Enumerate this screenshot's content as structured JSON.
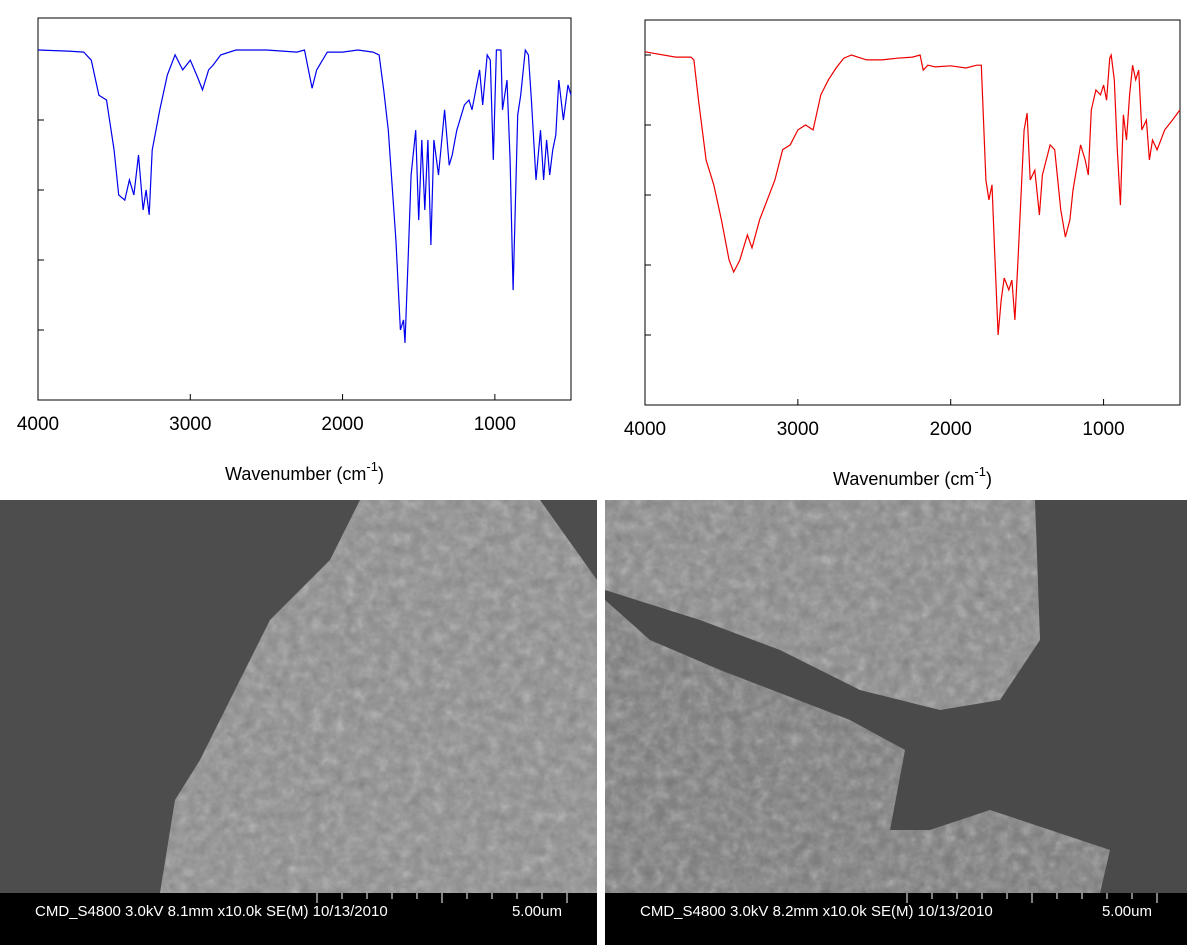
{
  "chart_data": [
    {
      "type": "line",
      "color": "#0000ee",
      "xlabel": "Wavenumber (cm",
      "xlabel_sup": "-1",
      "xlabel_end": ")",
      "xlim": [
        4000,
        500
      ],
      "xticks": [
        4000,
        3000,
        2000,
        1000
      ],
      "ylim": [
        0,
        110
      ],
      "yticks": [
        0,
        20,
        40,
        60,
        80,
        100
      ],
      "x": [
        4000,
        3800,
        3700,
        3650,
        3600,
        3550,
        3500,
        3470,
        3430,
        3400,
        3370,
        3340,
        3310,
        3290,
        3270,
        3250,
        3200,
        3150,
        3100,
        3050,
        3000,
        2950,
        2920,
        2880,
        2850,
        2800,
        2700,
        2500,
        2300,
        2250,
        2200,
        2170,
        2100,
        2000,
        1900,
        1800,
        1760,
        1730,
        1700,
        1650,
        1620,
        1600,
        1590,
        1570,
        1550,
        1520,
        1500,
        1480,
        1460,
        1440,
        1420,
        1400,
        1370,
        1330,
        1300,
        1280,
        1250,
        1200,
        1170,
        1150,
        1100,
        1080,
        1050,
        1030,
        1010,
        990,
        960,
        950,
        920,
        900,
        880,
        870,
        850,
        830,
        800,
        780,
        760,
        730,
        700,
        680,
        660,
        640,
        620,
        600,
        580,
        550,
        520,
        500
      ],
      "values": [
        100,
        99.7,
        99.4,
        97.1,
        87.1,
        85.7,
        71.4,
        58.6,
        57.1,
        62.9,
        58.6,
        70,
        54.3,
        60,
        52.9,
        71.4,
        82.9,
        92.9,
        98.6,
        94.3,
        97.1,
        92,
        88.6,
        94.3,
        95.7,
        98.6,
        100,
        100,
        99.4,
        100,
        89.1,
        94.3,
        99.4,
        99.4,
        100,
        99.4,
        98.6,
        88.6,
        77.1,
        45.7,
        20,
        22.9,
        16.3,
        40,
        64.3,
        77.1,
        51.4,
        74.3,
        54.3,
        74.3,
        44.3,
        74.3,
        64.3,
        82.9,
        67.1,
        70,
        77.1,
        84.3,
        85.7,
        82.9,
        94.3,
        84.3,
        98.6,
        97.1,
        68.6,
        100,
        100,
        82.9,
        91.4,
        68.6,
        31.4,
        48.6,
        81.4,
        87.1,
        100,
        98.6,
        85.7,
        62.9,
        77.1,
        62.9,
        74.3,
        64.3,
        71.4,
        75.7,
        91.4,
        80,
        90,
        87.1
      ]
    },
    {
      "type": "line",
      "color": "#ee0000",
      "xlabel": "Wavenumber (cm",
      "xlabel_sup": "-1",
      "xlabel_end": ")",
      "xlim": [
        4000,
        500
      ],
      "xticks": [
        4000,
        3000,
        2000,
        1000
      ],
      "ylim": [
        0,
        110
      ],
      "yticks": [
        0,
        20,
        40,
        60,
        80,
        100
      ],
      "x": [
        4000,
        3800,
        3700,
        3680,
        3650,
        3600,
        3550,
        3500,
        3450,
        3420,
        3380,
        3330,
        3300,
        3250,
        3150,
        3100,
        3050,
        3000,
        2950,
        2900,
        2850,
        2800,
        2750,
        2700,
        2650,
        2550,
        2450,
        2350,
        2250,
        2200,
        2180,
        2150,
        2100,
        2000,
        1900,
        1830,
        1800,
        1770,
        1750,
        1730,
        1710,
        1690,
        1670,
        1650,
        1620,
        1600,
        1580,
        1560,
        1520,
        1500,
        1480,
        1450,
        1420,
        1400,
        1350,
        1320,
        1280,
        1250,
        1220,
        1200,
        1150,
        1120,
        1100,
        1080,
        1050,
        1020,
        1000,
        980,
        960,
        950,
        930,
        910,
        890,
        870,
        850,
        830,
        810,
        790,
        770,
        750,
        720,
        700,
        680,
        650,
        600,
        550,
        500
      ],
      "values": [
        100.9,
        99.4,
        99.4,
        98.6,
        87.1,
        70,
        62.9,
        52.9,
        41.4,
        38,
        41.4,
        48.6,
        44.9,
        52.9,
        64.3,
        72.9,
        74.3,
        78.6,
        80,
        78.6,
        88.6,
        92.9,
        96.3,
        99.1,
        100,
        98.6,
        98.6,
        99.1,
        99.4,
        100,
        95.7,
        97.1,
        96.6,
        96.9,
        96.3,
        97.1,
        97.1,
        64.3,
        58.6,
        62.9,
        41.4,
        20,
        30,
        36.3,
        32.9,
        35.7,
        24.3,
        41.4,
        78.6,
        83.4,
        64.3,
        67.1,
        54.3,
        65.7,
        74.3,
        72.9,
        55.7,
        48,
        52.9,
        61.4,
        74.3,
        70,
        65.7,
        84.3,
        90,
        88.6,
        91.4,
        87.1,
        99.1,
        100,
        92.9,
        72.9,
        57.1,
        82.9,
        75.7,
        88.6,
        97.1,
        92.9,
        95.7,
        78.6,
        81.4,
        70,
        75.7,
        72.9,
        78.6,
        81.4,
        84.3
      ]
    }
  ],
  "images": [
    {
      "caption": "CMD_S4800 3.0kV 8.1mm x10.0k SE(M) 10/13/2010",
      "scale": "5.00um"
    },
    {
      "caption": "CMD_S4800 3.0kV 8.2mm x10.0k SE(M) 10/13/2010",
      "scale": "5.00um"
    }
  ]
}
